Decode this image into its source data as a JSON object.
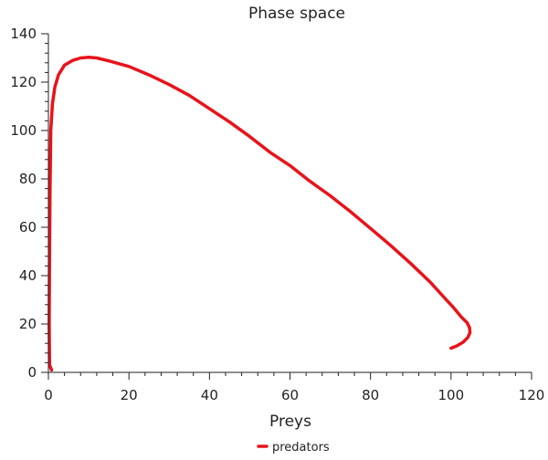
{
  "chart_data": {
    "type": "line",
    "title": "Phase space",
    "xlabel": "Preys",
    "ylabel": "",
    "xlim": [
      0,
      120
    ],
    "ylim": [
      0,
      140
    ],
    "xticks": [
      0,
      20,
      40,
      60,
      80,
      100,
      120
    ],
    "yticks": [
      0,
      20,
      40,
      60,
      80,
      100,
      120,
      140
    ],
    "grid": false,
    "legend_position": "bottom-center",
    "series": [
      {
        "name": "predators",
        "color": "#e8131a",
        "x": [
          0.8,
          0.3,
          0.2,
          0.3,
          0.4,
          0.5,
          0.6,
          1.0,
          1.6,
          2.5,
          4.0,
          6.0,
          8.0,
          10.0,
          12.0,
          15.0,
          20.0,
          25.0,
          30.0,
          35.0,
          40.0,
          45.0,
          50.0,
          55.0,
          60.0,
          65.0,
          70.0,
          75.0,
          80.0,
          85.0,
          90.0,
          95.0,
          98.0,
          100.5,
          102.5,
          104.0,
          104.6,
          104.7,
          104.2,
          103.0,
          101.5,
          100.0
        ],
        "y": [
          1.0,
          3.0,
          20.0,
          50.0,
          75.0,
          87.0,
          100.0,
          111.0,
          118.0,
          123.0,
          127.0,
          129.0,
          130.0,
          130.3,
          130.0,
          128.8,
          126.5,
          123.0,
          119.0,
          114.5,
          109.0,
          103.5,
          97.5,
          91.0,
          85.5,
          79.0,
          73.0,
          66.5,
          59.5,
          52.5,
          45.0,
          37.0,
          31.5,
          27.0,
          23.0,
          20.5,
          18.5,
          16.5,
          14.5,
          12.5,
          11.0,
          10.0
        ]
      }
    ]
  }
}
